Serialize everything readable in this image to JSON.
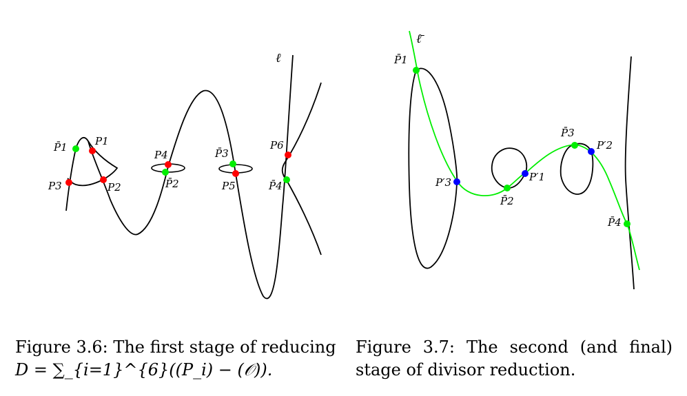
{
  "figure_left": {
    "line_label": "ℓ",
    "points": {
      "pbar1": "P̄1",
      "p1": "P1",
      "p3": "P3",
      "p2": "P2",
      "p4": "P4",
      "pbar2": "P̄2",
      "pbar3": "P̄3",
      "p5": "P5",
      "p6": "P6",
      "pbar4": "P̄4"
    },
    "caption_line1": "Figure 3.6: The first stage of reducing",
    "caption_line2": "D = ∑_{i=1}^{6}((P_i) − (𝒪))."
  },
  "figure_right": {
    "line_label": "ℓ̄",
    "points": {
      "pbar1": "P̄1",
      "pprime3": "P′3",
      "pprime1": "P′1",
      "pbar2": "P̄2",
      "pbar3": "P̄3",
      "pprime2": "P′2",
      "pbar4": "P̄4"
    },
    "caption_words": [
      "Figure",
      "3.7:",
      "The",
      "second",
      "(and",
      "final)"
    ],
    "caption_line2": "stage of divisor reduction."
  },
  "colors": {
    "curve": "#000000",
    "green": "#00ee00",
    "red": "#ff0000",
    "blue": "#0000ff"
  }
}
